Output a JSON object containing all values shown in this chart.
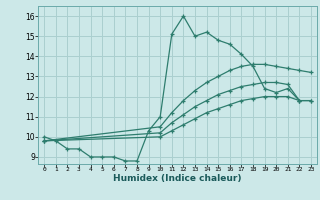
{
  "title": "",
  "xlabel": "Humidex (Indice chaleur)",
  "ylabel": "",
  "background_color": "#cce8e8",
  "grid_color": "#aacfcf",
  "line_color": "#2e7d6e",
  "x_ticks": [
    0,
    1,
    2,
    3,
    4,
    5,
    6,
    7,
    8,
    9,
    10,
    11,
    12,
    13,
    14,
    15,
    16,
    17,
    18,
    19,
    20,
    21,
    22,
    23
  ],
  "y_ticks": [
    9,
    10,
    11,
    12,
    13,
    14,
    15,
    16
  ],
  "xlim": [
    -0.5,
    23.5
  ],
  "ylim": [
    8.65,
    16.5
  ],
  "series": [
    {
      "x": [
        0,
        1,
        2,
        3,
        4,
        5,
        6,
        7,
        8,
        9,
        10,
        11,
        12,
        13,
        14,
        15,
        16,
        17,
        18,
        19,
        20,
        21,
        22
      ],
      "y": [
        10.0,
        9.8,
        9.4,
        9.4,
        9.0,
        9.0,
        9.0,
        8.8,
        8.8,
        10.3,
        11.0,
        15.1,
        16.0,
        15.0,
        15.2,
        14.8,
        14.6,
        14.1,
        13.5,
        12.4,
        12.2,
        12.4,
        11.8
      ]
    },
    {
      "x": [
        0,
        10,
        11,
        12,
        13,
        14,
        15,
        16,
        17,
        18,
        19,
        20,
        21,
        22,
        23
      ],
      "y": [
        9.8,
        10.5,
        11.2,
        11.8,
        12.3,
        12.7,
        13.0,
        13.3,
        13.5,
        13.6,
        13.6,
        13.5,
        13.4,
        13.3,
        13.2
      ]
    },
    {
      "x": [
        0,
        10,
        11,
        12,
        13,
        14,
        15,
        16,
        17,
        18,
        19,
        20,
        21,
        22,
        23
      ],
      "y": [
        9.8,
        10.2,
        10.7,
        11.1,
        11.5,
        11.8,
        12.1,
        12.3,
        12.5,
        12.6,
        12.7,
        12.7,
        12.6,
        11.8,
        11.8
      ]
    },
    {
      "x": [
        0,
        10,
        11,
        12,
        13,
        14,
        15,
        16,
        17,
        18,
        19,
        20,
        21,
        22,
        23
      ],
      "y": [
        9.8,
        10.0,
        10.3,
        10.6,
        10.9,
        11.2,
        11.4,
        11.6,
        11.8,
        11.9,
        12.0,
        12.0,
        12.0,
        11.8,
        11.8
      ]
    }
  ]
}
